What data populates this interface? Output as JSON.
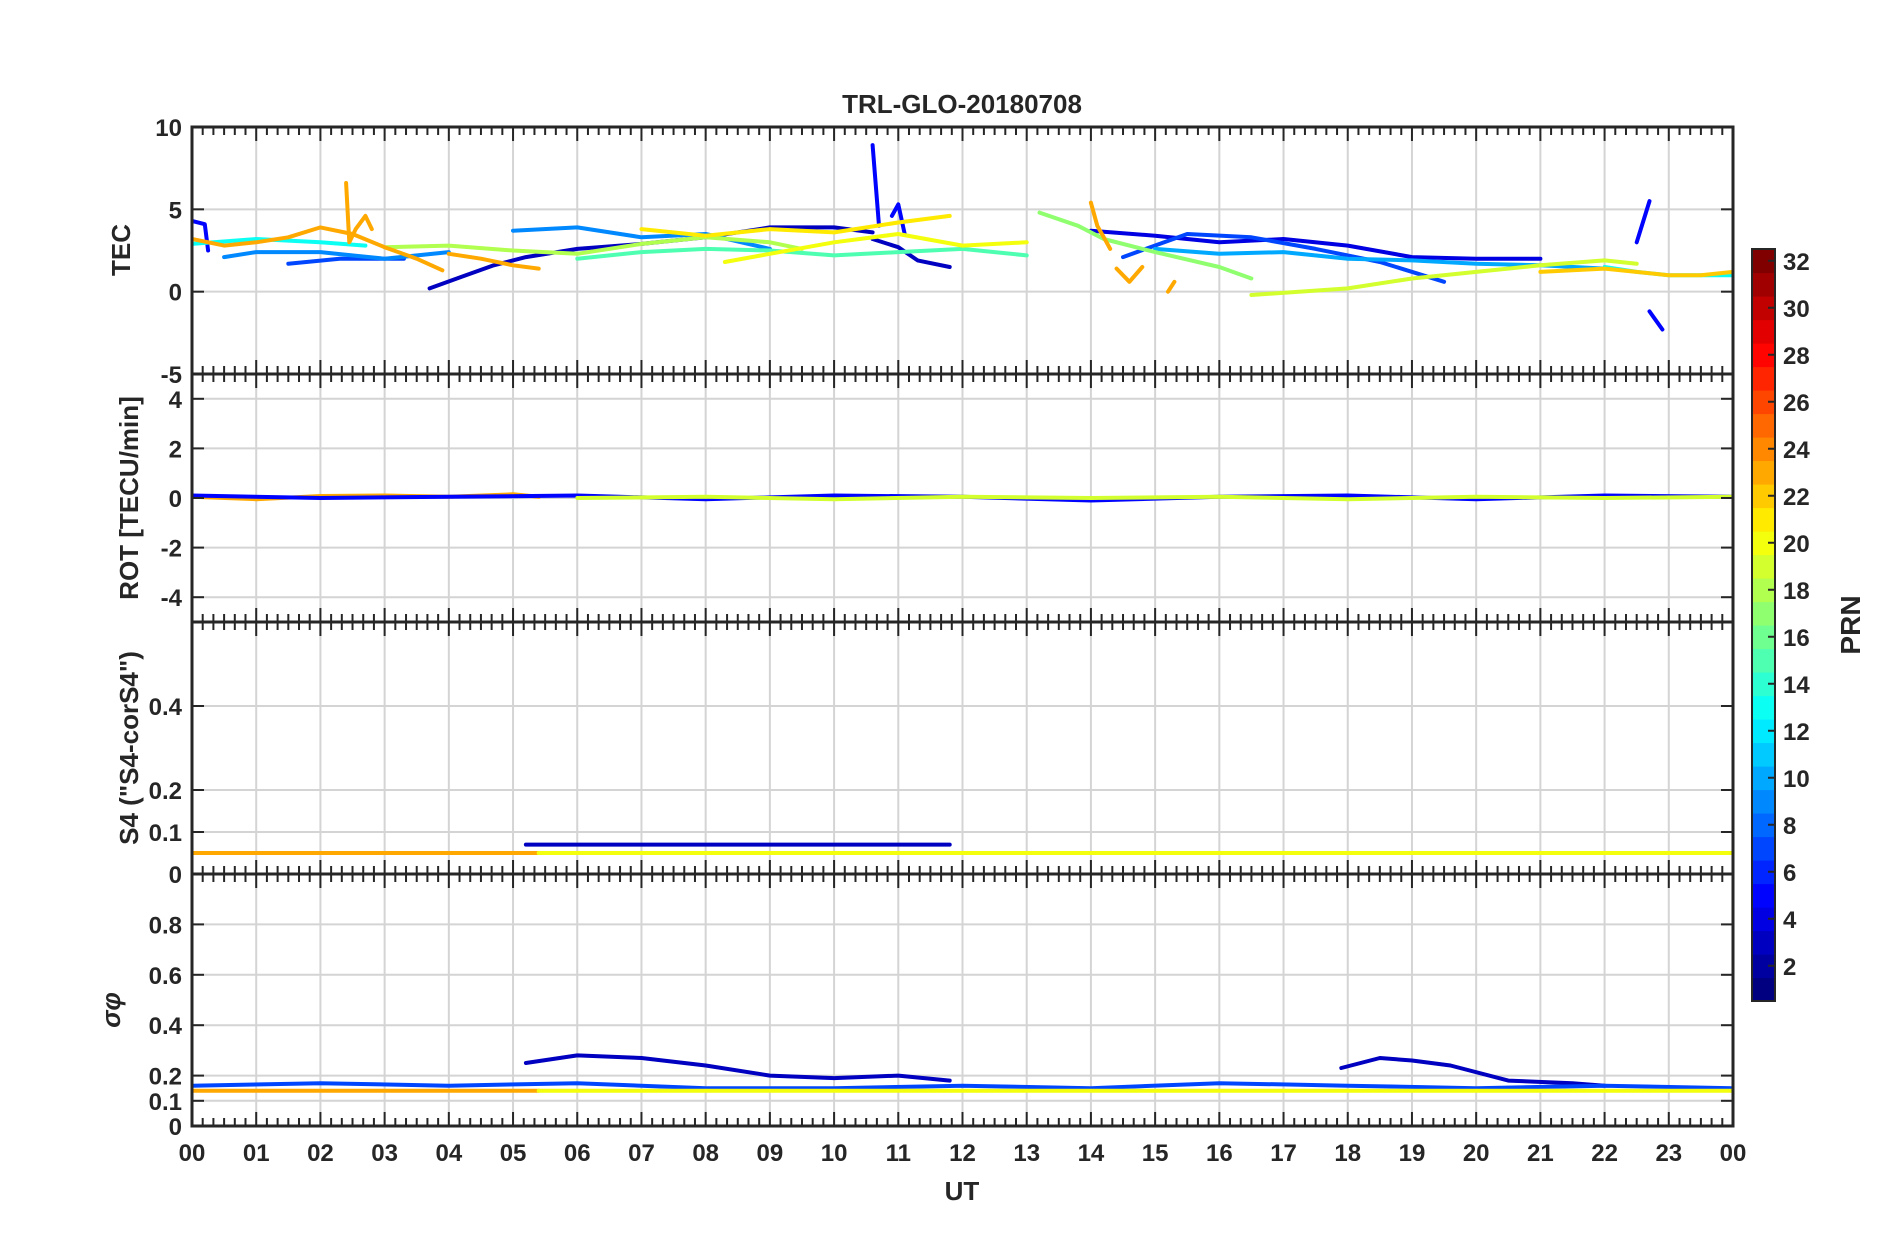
{
  "chart_data": {
    "type": "line",
    "title": "TRL-GLO-20180708",
    "xlabel": "UT",
    "x_tick_labels": [
      "00",
      "01",
      "02",
      "03",
      "04",
      "05",
      "06",
      "07",
      "08",
      "09",
      "10",
      "11",
      "12",
      "13",
      "14",
      "15",
      "16",
      "17",
      "18",
      "19",
      "20",
      "21",
      "22",
      "23",
      "00"
    ],
    "xlim": [
      0,
      24
    ],
    "grid": true,
    "colorbar": {
      "label": "PRN",
      "range": [
        1,
        32
      ],
      "ticks": [
        "2",
        "4",
        "6",
        "8",
        "10",
        "12",
        "14",
        "16",
        "18",
        "20",
        "22",
        "24",
        "26",
        "28",
        "30",
        "32"
      ],
      "colormap": "jet"
    },
    "panels": [
      {
        "id": "tec",
        "ylabel": "TEC",
        "ylim": [
          -5,
          10
        ],
        "y_ticks": [
          -5,
          0,
          5,
          10
        ],
        "y_tick_labels": [
          "-5",
          "0",
          "5",
          "10"
        ],
        "series": [
          {
            "prn": 3,
            "x": [
              3.7,
              4.2,
              4.7,
              5.2,
              6.0,
              7.0,
              8.0,
              9.0,
              10.0,
              10.6
            ],
            "y": [
              0.2,
              0.9,
              1.6,
              2.1,
              2.6,
              2.9,
              3.3,
              3.9,
              3.9,
              3.6
            ]
          },
          {
            "prn": 3,
            "x": [
              10.6,
              11.0,
              11.3,
              11.8
            ],
            "y": [
              3.2,
              2.7,
              1.9,
              1.5
            ]
          },
          {
            "prn": 4,
            "x": [
              14.0,
              15.0,
              16.0,
              17.0,
              18.0,
              19.0,
              20.0,
              21.0
            ],
            "y": [
              3.7,
              3.4,
              3.0,
              3.2,
              2.8,
              2.1,
              2.0,
              2.0
            ]
          },
          {
            "prn": 5,
            "x": [
              0.0,
              0.2,
              0.25
            ],
            "y": [
              4.3,
              4.1,
              2.5
            ]
          },
          {
            "prn": 5,
            "x": [
              10.6,
              10.7
            ],
            "y": [
              8.9,
              4.0
            ]
          },
          {
            "prn": 5,
            "x": [
              10.9,
              11.0,
              11.1
            ],
            "y": [
              4.6,
              5.3,
              3.5
            ]
          },
          {
            "prn": 5,
            "x": [
              22.5,
              22.7
            ],
            "y": [
              3.0,
              5.5
            ]
          },
          {
            "prn": 5,
            "x": [
              22.7,
              22.9
            ],
            "y": [
              -1.2,
              -2.3
            ]
          },
          {
            "prn": 7,
            "x": [
              1.5,
              2.3,
              3.3
            ],
            "y": [
              1.7,
              2.0,
              2.0
            ]
          },
          {
            "prn": 7,
            "x": [
              14.5,
              15.5,
              16.5,
              17.5,
              18.5,
              19.5
            ],
            "y": [
              2.1,
              3.5,
              3.3,
              2.6,
              1.8,
              0.6
            ]
          },
          {
            "prn": 9,
            "x": [
              0.5,
              1.0,
              2.0,
              3.0,
              4.0
            ],
            "y": [
              2.1,
              2.4,
              2.4,
              2.0,
              2.4
            ]
          },
          {
            "prn": 9,
            "x": [
              5.0,
              6.0,
              7.0,
              8.0,
              9.0
            ],
            "y": [
              3.7,
              3.9,
              3.3,
              3.5,
              2.6
            ]
          },
          {
            "prn": 10,
            "x": [
              15.0,
              16.0,
              17.0,
              18.0,
              19.0,
              20.0,
              21.0,
              22.0
            ],
            "y": [
              2.6,
              2.3,
              2.4,
              2.0,
              1.9,
              1.7,
              1.6,
              1.4
            ]
          },
          {
            "prn": 13,
            "x": [
              0.0,
              1.0,
              2.0,
              2.7
            ],
            "y": [
              2.9,
              3.2,
              3.0,
              2.8
            ]
          },
          {
            "prn": 13,
            "x": [
              22.0,
              22.5,
              23.0,
              24.0
            ],
            "y": [
              1.5,
              1.2,
              1.0,
              1.0
            ]
          },
          {
            "prn": 15,
            "x": [
              6.0,
              7.0,
              8.0,
              9.0,
              10.0,
              11.0,
              12.0,
              13.0
            ],
            "y": [
              2.0,
              2.4,
              2.6,
              2.5,
              2.2,
              2.4,
              2.6,
              2.2
            ]
          },
          {
            "prn": 17,
            "x": [
              13.2,
              13.8,
              14.2,
              15.0,
              16.0,
              16.5
            ],
            "y": [
              4.8,
              4.0,
              3.2,
              2.4,
              1.5,
              0.8
            ]
          },
          {
            "prn": 18,
            "x": [
              3.0,
              4.0,
              5.0,
              6.0,
              7.0,
              8.0,
              9.0,
              9.5
            ],
            "y": [
              2.7,
              2.8,
              2.5,
              2.3,
              2.9,
              3.3,
              3.0,
              2.6
            ]
          },
          {
            "prn": 19,
            "x": [
              16.5,
              18.0,
              19.0,
              20.0,
              21.0,
              22.0,
              22.5
            ],
            "y": [
              -0.2,
              0.2,
              0.8,
              1.2,
              1.6,
              1.9,
              1.7
            ]
          },
          {
            "prn": 21,
            "x": [
              7.0,
              8.0,
              9.0,
              10.0,
              11.0,
              11.8
            ],
            "y": [
              3.8,
              3.4,
              3.8,
              3.6,
              4.2,
              4.6
            ]
          },
          {
            "prn": 20,
            "x": [
              8.3,
              9.0,
              10.0,
              11.0,
              12.0,
              13.0
            ],
            "y": [
              1.8,
              2.3,
              3.0,
              3.5,
              2.8,
              3.0
            ]
          },
          {
            "prn": 23,
            "x": [
              0.0,
              0.5,
              1.0,
              1.5,
              2.0,
              2.5,
              3.0,
              3.5,
              3.9
            ],
            "y": [
              3.2,
              2.8,
              3.0,
              3.3,
              3.9,
              3.5,
              2.7,
              2.0,
              1.3
            ]
          },
          {
            "prn": 23,
            "x": [
              2.4,
              2.45,
              2.55,
              2.7,
              2.8
            ],
            "y": [
              6.6,
              3.0,
              3.8,
              4.6,
              3.8
            ]
          },
          {
            "prn": 23,
            "x": [
              4.0,
              4.5,
              5.0,
              5.4
            ],
            "y": [
              2.3,
              2.0,
              1.6,
              1.4
            ]
          },
          {
            "prn": 23,
            "x": [
              14.0,
              14.1,
              14.2,
              14.3
            ],
            "y": [
              5.4,
              4.0,
              3.3,
              2.6
            ]
          },
          {
            "prn": 23,
            "x": [
              14.4,
              14.6,
              14.8
            ],
            "y": [
              1.4,
              0.6,
              1.5
            ]
          },
          {
            "prn": 23,
            "x": [
              15.2,
              15.3
            ],
            "y": [
              0.0,
              0.6
            ]
          },
          {
            "prn": 22,
            "x": [
              21.0,
              22.0,
              23.0,
              23.5,
              24.0
            ],
            "y": [
              1.2,
              1.4,
              1.0,
              1.0,
              1.2
            ]
          }
        ]
      },
      {
        "id": "rot",
        "ylabel": "ROT [TECU/min]",
        "ylim": [
          -5,
          5
        ],
        "y_ticks": [
          -4,
          -2,
          0,
          2,
          4
        ],
        "y_tick_labels": [
          "-4",
          "-2",
          "0",
          "2",
          "4"
        ],
        "series": [
          {
            "prn": 23,
            "x": [
              0,
              1,
              2,
              3,
              4,
              5,
              5.4
            ],
            "y": [
              0.05,
              -0.05,
              0.08,
              0.1,
              0.05,
              0.15,
              0.05
            ]
          },
          {
            "prn": 5,
            "x": [
              0,
              2,
              4,
              6,
              8,
              10,
              12,
              14,
              16,
              18,
              20,
              22,
              24
            ],
            "y": [
              0.1,
              0.0,
              0.05,
              0.1,
              -0.05,
              0.1,
              0.05,
              -0.1,
              0.05,
              0.1,
              -0.05,
              0.1,
              0.05
            ]
          },
          {
            "prn": 19,
            "x": [
              6,
              8,
              10,
              12,
              14,
              16,
              18,
              20,
              22,
              24
            ],
            "y": [
              0.0,
              0.05,
              -0.05,
              0.05,
              0.0,
              0.05,
              -0.05,
              0.05,
              0.0,
              0.05
            ]
          }
        ]
      },
      {
        "id": "s4",
        "ylabel": "S4 (\"S4-corS4\")",
        "ylim": [
          0,
          0.6
        ],
        "y_ticks": [
          0,
          0.1,
          0.2,
          0.4
        ],
        "y_tick_labels": [
          "0",
          "0.1",
          "0.2",
          "0.4"
        ],
        "series": [
          {
            "prn": 23,
            "x": [
              0,
              5.4
            ],
            "y": [
              0.05,
              0.05
            ]
          },
          {
            "prn": 3,
            "x": [
              5.2,
              11.8
            ],
            "y": [
              0.07,
              0.07
            ]
          },
          {
            "prn": 20,
            "x": [
              5.4,
              24
            ],
            "y": [
              0.05,
              0.05
            ]
          }
        ]
      },
      {
        "id": "sigma_phi",
        "ylabel": "σφ",
        "ylim": [
          0,
          1.0
        ],
        "y_ticks": [
          0,
          0.1,
          0.2,
          0.4,
          0.6,
          0.8
        ],
        "y_tick_labels": [
          "0",
          "0.1",
          "0.2",
          "0.4",
          "0.6",
          "0.8"
        ],
        "series": [
          {
            "prn": 3,
            "x": [
              5.2,
              6.0,
              7.0,
              8.0,
              9.0,
              10.0,
              11.0,
              11.8
            ],
            "y": [
              0.25,
              0.28,
              0.27,
              0.24,
              0.2,
              0.19,
              0.2,
              0.18
            ]
          },
          {
            "prn": 3,
            "x": [
              17.9,
              18.5,
              19.0,
              19.6,
              20.5,
              21.5,
              22.0
            ],
            "y": [
              0.23,
              0.27,
              0.26,
              0.24,
              0.18,
              0.17,
              0.16
            ]
          },
          {
            "prn": 7,
            "x": [
              0,
              2,
              4,
              6,
              8,
              10,
              12,
              14,
              16,
              18,
              20,
              22,
              24
            ],
            "y": [
              0.16,
              0.17,
              0.16,
              0.17,
              0.15,
              0.15,
              0.16,
              0.15,
              0.17,
              0.16,
              0.15,
              0.16,
              0.15
            ]
          },
          {
            "prn": 23,
            "x": [
              0,
              5.4
            ],
            "y": [
              0.14,
              0.14
            ]
          },
          {
            "prn": 20,
            "x": [
              5.4,
              24
            ],
            "y": [
              0.14,
              0.14
            ]
          }
        ]
      }
    ]
  }
}
